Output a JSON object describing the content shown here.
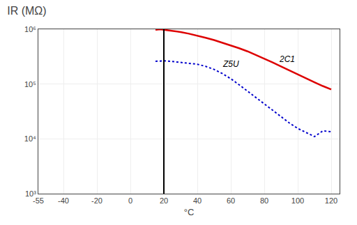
{
  "chart_data": {
    "type": "line",
    "title": "IR (MΩ)",
    "x_label": "°C",
    "xlim": [
      -55,
      125
    ],
    "xticks": [
      -55,
      -40,
      -20,
      0,
      20,
      40,
      60,
      80,
      100,
      120
    ],
    "ylim": [
      1000,
      1000000
    ],
    "yticks": [
      {
        "value": 1000,
        "label": "10³"
      },
      {
        "value": 10000,
        "label": "10⁴"
      },
      {
        "value": 100000,
        "label": "10⁵"
      },
      {
        "value": 1000000,
        "label": "10⁶"
      }
    ],
    "log": "y",
    "grid": true,
    "series": [
      {
        "name": "2C1",
        "color": "#dd0000",
        "line_style": "solid",
        "x": [
          15,
          18,
          20,
          25,
          30,
          35,
          40,
          45,
          50,
          55,
          60,
          65,
          70,
          75,
          80,
          85,
          90,
          95,
          100,
          105,
          110,
          115,
          120
        ],
        "values": [
          980000,
          1000000,
          980000,
          940000,
          890000,
          830000,
          770000,
          700000,
          635000,
          570000,
          510000,
          450000,
          395000,
          340000,
          290000,
          248000,
          210000,
          177000,
          150000,
          127000,
          108000,
          92000,
          80000
        ]
      },
      {
        "name": "Z5U",
        "color": "#0000cc",
        "line_style": "dotted",
        "x": [
          15,
          20,
          25,
          30,
          35,
          40,
          45,
          50,
          55,
          60,
          65,
          70,
          75,
          80,
          85,
          90,
          95,
          100,
          105,
          110,
          115,
          120
        ],
        "values": [
          260000,
          265000,
          258000,
          250000,
          242000,
          230000,
          210000,
          185000,
          155000,
          125000,
          97000,
          74000,
          57000,
          43000,
          33000,
          25000,
          19500,
          15500,
          13000,
          11000,
          14000,
          13500
        ]
      }
    ],
    "annotations": [
      {
        "text": "2C1",
        "x": 88,
        "y": 220000
      },
      {
        "text": "Z5U",
        "x": 54,
        "y": 178000
      }
    ],
    "vlines": [
      20
    ]
  }
}
